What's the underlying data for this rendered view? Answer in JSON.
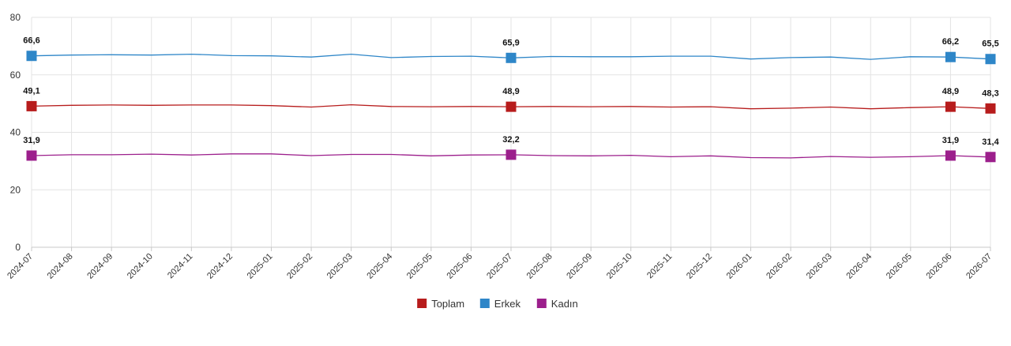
{
  "chart_data": {
    "type": "line",
    "x": [
      "2024-07",
      "2024-08",
      "2024-09",
      "2024-10",
      "2024-11",
      "2024-12",
      "2025-01",
      "2025-02",
      "2025-03",
      "2025-04",
      "2025-05",
      "2025-06",
      "2025-07",
      "2025-08",
      "2025-09",
      "2025-10",
      "2025-11",
      "2025-12",
      "2026-01",
      "2026-02",
      "2026-03",
      "2026-04",
      "2026-05",
      "2026-06",
      "2026-07"
    ],
    "ylim": [
      0,
      80
    ],
    "yticks": [
      0,
      20,
      40,
      60,
      80
    ],
    "grid": true,
    "legend_position": "bottom-center",
    "series": [
      {
        "name": "Toplam",
        "color": "#b71c1c",
        "values": [
          49.1,
          49.4,
          49.5,
          49.4,
          49.5,
          49.5,
          49.3,
          48.8,
          49.6,
          49.0,
          48.9,
          49.0,
          48.9,
          49.0,
          48.9,
          49.0,
          48.8,
          48.9,
          48.2,
          48.4,
          48.8,
          48.2,
          48.6,
          48.9,
          48.3
        ],
        "labels": [
          {
            "index": 0,
            "text": "49,1"
          },
          {
            "index": 12,
            "text": "48,9"
          },
          {
            "index": 23,
            "text": "48,9"
          },
          {
            "index": 24,
            "text": "48,3"
          }
        ]
      },
      {
        "name": "Erkek",
        "color": "#2e86c8",
        "values": [
          66.6,
          66.9,
          67.0,
          66.9,
          67.2,
          66.7,
          66.6,
          66.2,
          67.2,
          66.0,
          66.4,
          66.5,
          65.9,
          66.4,
          66.3,
          66.3,
          66.5,
          66.5,
          65.5,
          66.0,
          66.2,
          65.4,
          66.3,
          66.2,
          65.5
        ],
        "labels": [
          {
            "index": 0,
            "text": "66,6"
          },
          {
            "index": 12,
            "text": "65,9"
          },
          {
            "index": 23,
            "text": "66,2"
          },
          {
            "index": 24,
            "text": "65,5"
          }
        ]
      },
      {
        "name": "Kadın",
        "color": "#9c1f8c",
        "values": [
          31.9,
          32.2,
          32.2,
          32.4,
          32.1,
          32.5,
          32.5,
          31.9,
          32.3,
          32.3,
          31.8,
          32.1,
          32.2,
          31.9,
          31.8,
          32.0,
          31.5,
          31.8,
          31.2,
          31.1,
          31.6,
          31.3,
          31.5,
          31.9,
          31.4
        ],
        "labels": [
          {
            "index": 0,
            "text": "31,9"
          },
          {
            "index": 12,
            "text": "32,2"
          },
          {
            "index": 23,
            "text": "31,9"
          },
          {
            "index": 24,
            "text": "31,4"
          }
        ]
      }
    ]
  }
}
